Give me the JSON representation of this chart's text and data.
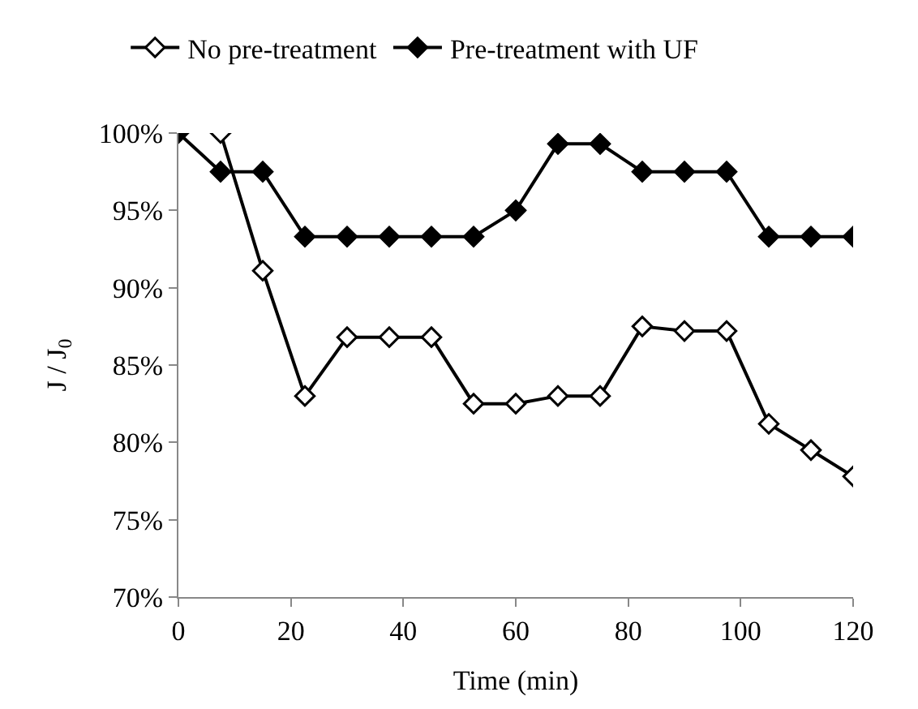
{
  "chart_data": {
    "type": "line",
    "xlabel": "Time (min)",
    "ylabel": "J / J$_{0}$",
    "xlim": [
      0,
      120
    ],
    "xticks": [
      0,
      20,
      40,
      60,
      80,
      100,
      120
    ],
    "ylim": [
      70,
      100
    ],
    "yticks": [
      {
        "value": 70,
        "label": "70%"
      },
      {
        "value": 75,
        "label": "75%"
      },
      {
        "value": 80,
        "label": "80%"
      },
      {
        "value": 85,
        "label": "85%"
      },
      {
        "value": 90,
        "label": "90%"
      },
      {
        "value": 95,
        "label": "95%"
      },
      {
        "value": 100,
        "label": "100%"
      }
    ],
    "legend": "top",
    "line_style": "solid",
    "series": [
      {
        "name": "No pre-treatment",
        "color": "#000000",
        "marker": "diamond-open",
        "x": [
          7.5,
          15,
          22.5,
          30,
          37.5,
          45,
          52.5,
          60,
          67.5,
          75,
          82.5,
          90,
          97.5,
          105,
          112.5,
          120
        ],
        "values": [
          100,
          91.1,
          83,
          86.8,
          86.8,
          86.8,
          82.5,
          82.5,
          83,
          83,
          87.5,
          87.2,
          87.2,
          81.2,
          79.5,
          77.8
        ]
      },
      {
        "name": "Pre-treatment with UF",
        "color": "#000000",
        "marker": "diamond",
        "x": [
          0,
          7.5,
          15,
          22.5,
          30,
          37.5,
          45,
          52.5,
          60,
          67.5,
          75,
          82.5,
          90,
          97.5,
          105,
          112.5,
          120
        ],
        "values": [
          100,
          97.5,
          97.5,
          93.3,
          93.3,
          93.3,
          93.3,
          93.3,
          95,
          99.3,
          99.3,
          97.5,
          97.5,
          97.5,
          93.3,
          93.3,
          93.3
        ]
      }
    ]
  }
}
